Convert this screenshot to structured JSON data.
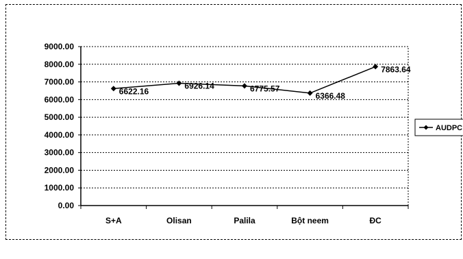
{
  "chart_data": {
    "type": "line",
    "categories": [
      "S+A",
      "Olisan",
      "Palila",
      "Bột neem",
      "ĐC"
    ],
    "series": [
      {
        "name": "AUDPC",
        "values": [
          6622.16,
          6926.14,
          6775.57,
          6366.48,
          7863.64
        ],
        "data_labels": [
          "6622.16",
          "6926.14",
          "6775.57",
          "6366.48",
          "7863.64"
        ],
        "color": "#000000",
        "marker": "diamond"
      }
    ],
    "title": "",
    "xlabel": "",
    "ylabel": "",
    "ylim": [
      0,
      9000
    ],
    "y_ticks": [
      "0.00",
      "1000.00",
      "2000.00",
      "3000.00",
      "4000.00",
      "5000.00",
      "6000.00",
      "7000.00",
      "8000.00",
      "9000.00"
    ],
    "grid": "horizontal dashed",
    "legend_position": "right"
  }
}
